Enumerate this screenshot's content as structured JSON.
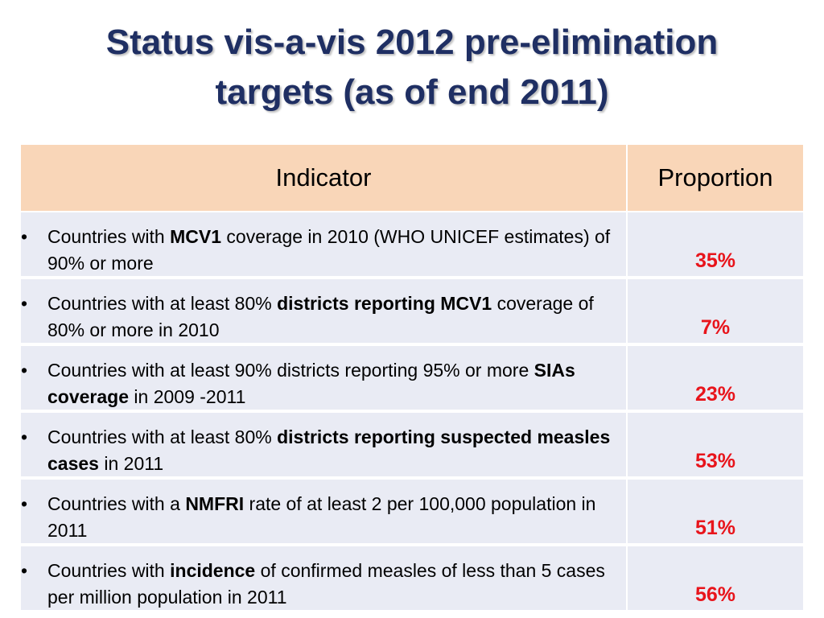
{
  "title": {
    "line1": "Status vis-a-vis 2012 pre-elimination",
    "line2": "targets (as of end 2011)"
  },
  "table": {
    "header": {
      "indicator": "Indicator",
      "proportion": "Proportion"
    },
    "bullet": "•",
    "rows": [
      {
        "parts": [
          "Countries with ",
          "MCV1",
          " coverage in 2010 (WHO UNICEF estimates) of 90% or more"
        ],
        "value": "35%"
      },
      {
        "parts": [
          "Countries with at least 80% ",
          "districts reporting MCV1",
          " coverage of 80% or more in 2010"
        ],
        "value": "7%"
      },
      {
        "parts": [
          "Countries with at least 90% districts reporting 95% or more ",
          "SIAs coverage",
          " in 2009 -2011"
        ],
        "value": "23%"
      },
      {
        "parts": [
          "Countries with at least 80% ",
          "districts reporting suspected measles cases",
          " in 2011"
        ],
        "value": "53%"
      },
      {
        "parts": [
          "Countries with a ",
          "NMFRI",
          " rate of at least 2 per 100,000 population in 2011"
        ],
        "value": "51%"
      },
      {
        "parts": [
          "Countries with ",
          "incidence",
          " of confirmed measles of less than 5 cases per million population in 2011"
        ],
        "value": "56%"
      }
    ]
  }
}
